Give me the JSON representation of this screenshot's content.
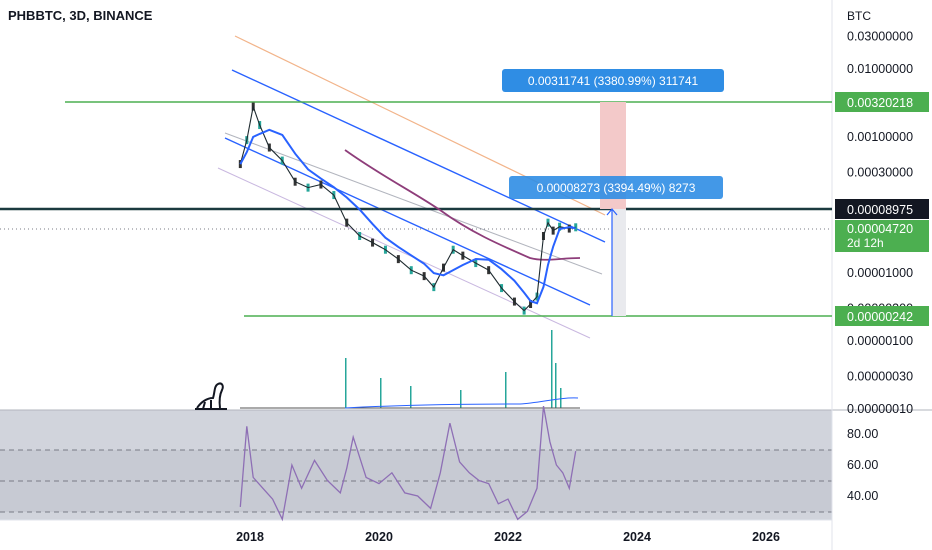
{
  "header": {
    "title": "PHBBTC, 3D, BINANCE"
  },
  "colors": {
    "green": "#4caf50",
    "blue": "#2962ff",
    "measure_blue": "#2f8de4",
    "price_line": "#1b3a3f",
    "rsi": "#8e6fb5",
    "ma_purple": "#8e3d7a",
    "candle_up": "#26a69a",
    "candle_down": "#333333"
  },
  "chart_data": [
    {
      "type": "line",
      "title": "PHBBTC, 3D, BINANCE",
      "ylabel": "BTC",
      "y_scale": "log",
      "x_tick_labels": [
        "2018",
        "2020",
        "2022",
        "2024",
        "2026"
      ],
      "y_tick_labels": [
        "0.03000000",
        "0.01000000",
        "0.00100000",
        "0.00030000",
        "0.00001000",
        "0.00000300",
        "0.00000100",
        "0.00000030",
        "0.00000010"
      ],
      "price_levels": [
        {
          "value": "0.00320218"
        },
        {
          "value": "0.00008975"
        },
        {
          "value": "0.00000242"
        }
      ],
      "current_price": {
        "value": "0.00004720",
        "countdown": "2d 12h"
      },
      "measurements": [
        {
          "text": "0.00311741 (3380.99%) 311741"
        },
        {
          "text": "0.00008273 (3394.49%) 8273"
        }
      ],
      "series": [
        {
          "x": [
            2017.85,
            2017.95,
            2018.05,
            2018.15,
            2018.3,
            2018.5,
            2018.7,
            2018.9,
            2019.1,
            2019.3,
            2019.5,
            2019.7,
            2019.9,
            2020.1,
            2020.3,
            2020.5,
            2020.7,
            2020.85,
            2021.0,
            2021.15,
            2021.3,
            2021.5,
            2021.7,
            2021.9,
            2022.1,
            2022.25,
            2022.35,
            2022.45,
            2022.55,
            2022.62,
            2022.7,
            2022.8,
            2022.95,
            2023.05
          ],
          "values": [
            0.0004,
            0.0009,
            0.0028,
            0.0015,
            0.0007,
            0.00045,
            0.00022,
            0.00018,
            0.0002,
            0.00014,
            5.5e-05,
            3.5e-05,
            2.8e-05,
            2.2e-05,
            1.6e-05,
            1.1e-05,
            9e-06,
            6.2e-06,
            1.2e-05,
            2.2e-05,
            1.8e-05,
            1.4e-05,
            1.1e-05,
            6e-06,
            3.8e-06,
            2.8e-06,
            3.5e-06,
            4.5e-06,
            3.5e-05,
            5.5e-05,
            4.2e-05,
            4.8e-05,
            4.5e-05,
            4.7e-05
          ]
        }
      ]
    },
    {
      "type": "line",
      "y_tick_labels": [
        "80.00",
        "60.00",
        "40.00"
      ],
      "series": [
        {
          "x": [
            2017.85,
            2017.95,
            2018.05,
            2018.2,
            2018.35,
            2018.5,
            2018.65,
            2018.8,
            2019.0,
            2019.2,
            2019.4,
            2019.5,
            2019.6,
            2019.8,
            2020.0,
            2020.2,
            2020.4,
            2020.6,
            2020.8,
            2020.95,
            2021.1,
            2021.25,
            2021.4,
            2021.55,
            2021.7,
            2021.85,
            2022.0,
            2022.15,
            2022.3,
            2022.45,
            2022.55,
            2022.65,
            2022.75,
            2022.85,
            2022.95,
            2023.05
          ],
          "values": [
            33,
            85,
            52,
            45,
            38,
            25,
            60,
            45,
            63,
            50,
            42,
            58,
            78,
            52,
            48,
            55,
            42,
            40,
            32,
            55,
            87,
            62,
            55,
            50,
            48,
            35,
            38,
            25,
            30,
            45,
            98,
            75,
            60,
            55,
            45,
            69
          ]
        }
      ]
    }
  ]
}
